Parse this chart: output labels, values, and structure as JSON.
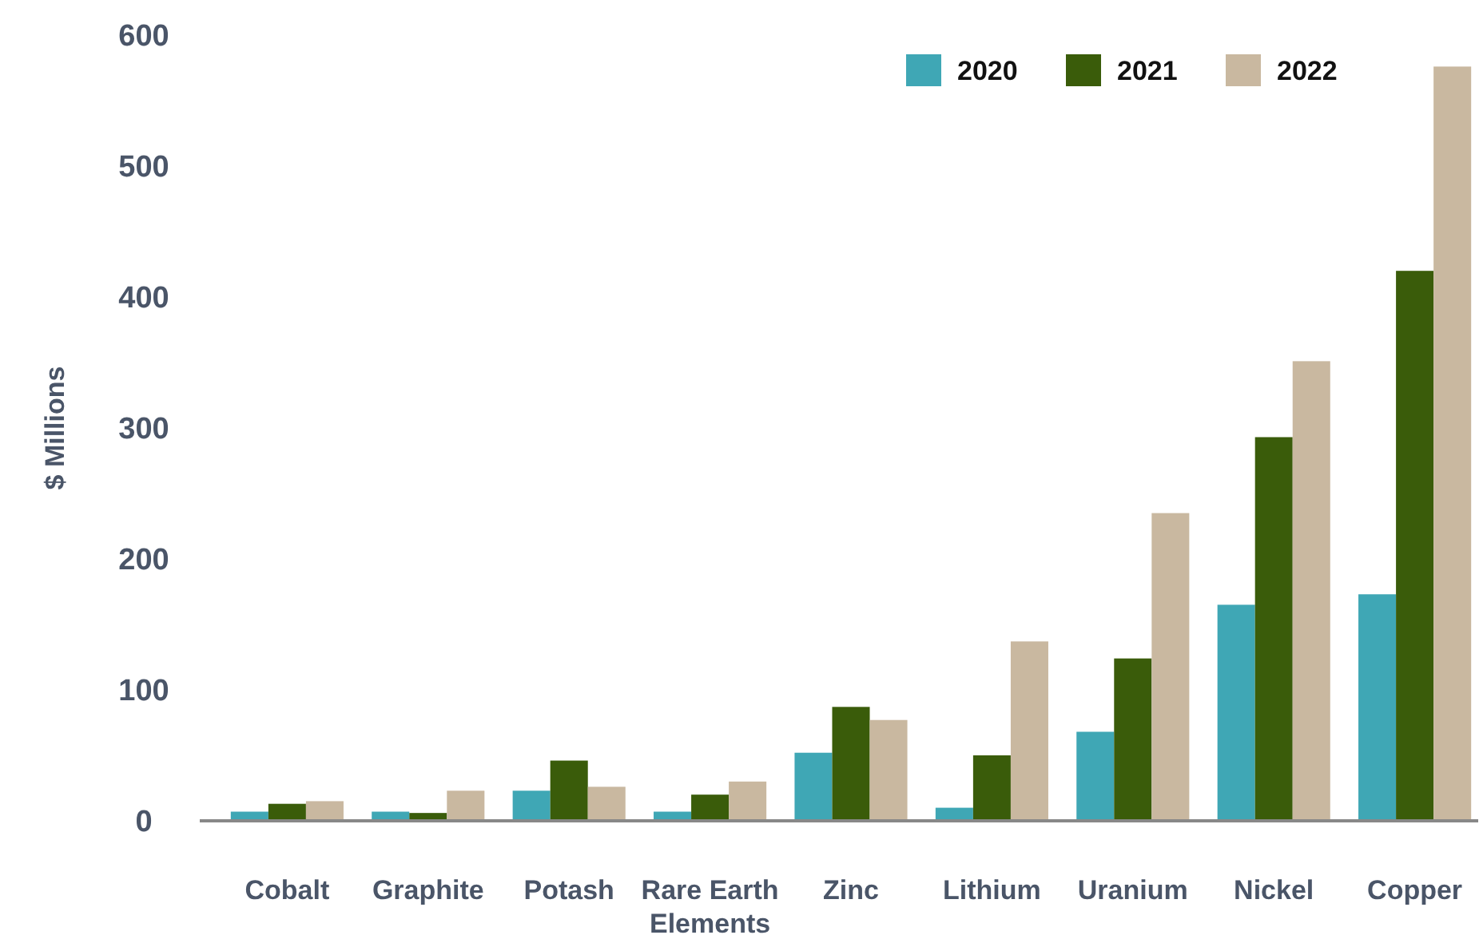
{
  "chart_data": {
    "type": "bar",
    "ylabel": "$ Millions",
    "categories": [
      "Cobalt",
      "Graphite",
      "Potash",
      "Rare Earth Elements",
      "Zinc",
      "Lithium",
      "Uranium",
      "Nickel",
      "Copper"
    ],
    "series": [
      {
        "name": "2020",
        "color": "#3fa7b5",
        "values": [
          7,
          7,
          23,
          7,
          52,
          10,
          68,
          165,
          173
        ]
      },
      {
        "name": "2021",
        "color": "#3a5c0a",
        "values": [
          13,
          6,
          46,
          20,
          87,
          50,
          124,
          293,
          420
        ]
      },
      {
        "name": "2022",
        "color": "#c9b8a0",
        "values": [
          15,
          23,
          26,
          30,
          77,
          137,
          235,
          351,
          576
        ]
      }
    ],
    "ylim": [
      0,
      600
    ],
    "yticks": [
      0,
      100,
      200,
      300,
      400,
      500,
      600
    ],
    "grid": false,
    "legend": "top right"
  }
}
